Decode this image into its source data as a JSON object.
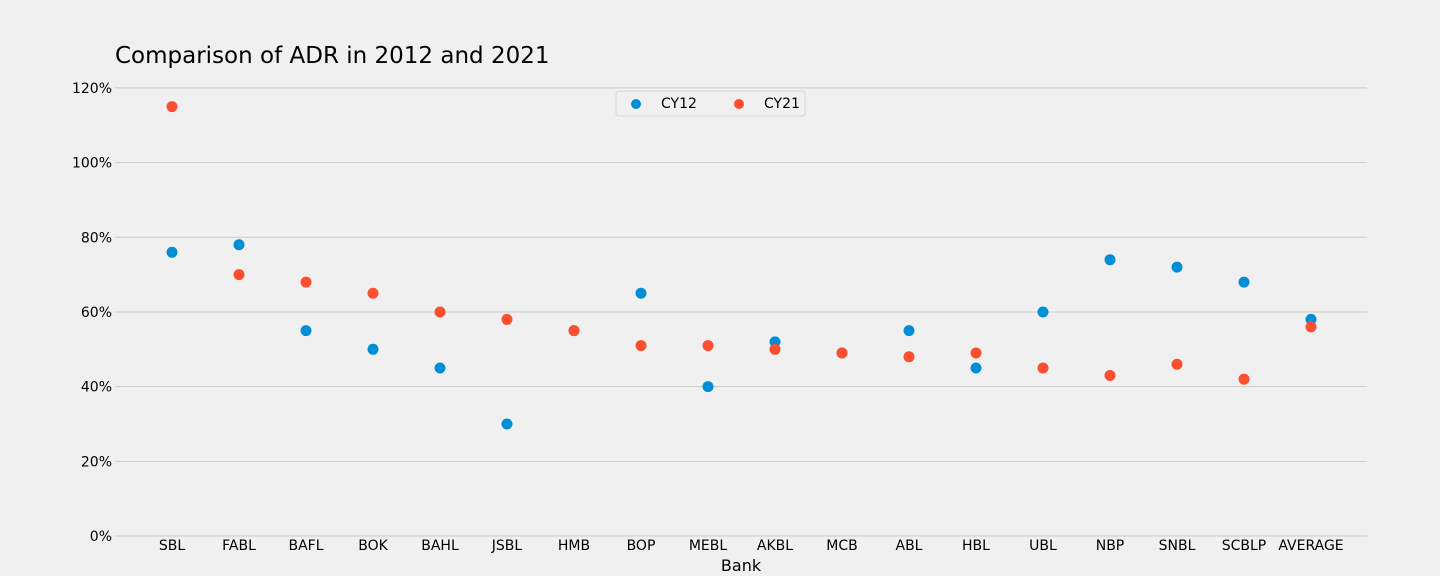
{
  "chart_data": {
    "type": "scatter",
    "title": "Comparison of ADR in 2012 and 2021",
    "xlabel": "Bank",
    "ylabel": "",
    "categories": [
      "SBL",
      "FABL",
      "BAFL",
      "BOK",
      "BAHL",
      "JSBL",
      "HMB",
      "BOP",
      "MEBL",
      "AKBL",
      "MCB",
      "ABL",
      "HBL",
      "UBL",
      "NBP",
      "SNBL",
      "SCBLP",
      "AVERAGE"
    ],
    "yticks": [
      0,
      20,
      40,
      60,
      80,
      100,
      120
    ],
    "ytick_labels": [
      "0%",
      "20%",
      "40%",
      "60%",
      "80%",
      "100%",
      "120%"
    ],
    "ylim": [
      0,
      120
    ],
    "grid": "horizontal",
    "legend_position": "top-center",
    "series": [
      {
        "name": "CY12",
        "color": "#008fd5",
        "values": [
          76,
          78,
          55,
          50,
          45,
          30,
          55,
          65,
          40,
          52,
          49,
          55,
          45,
          60,
          74,
          72,
          68,
          58
        ]
      },
      {
        "name": "CY21",
        "color": "#fc4f30",
        "values": [
          115,
          70,
          68,
          65,
          60,
          58,
          55,
          51,
          51,
          50,
          49,
          48,
          49,
          45,
          43,
          46,
          42,
          56
        ]
      }
    ]
  }
}
